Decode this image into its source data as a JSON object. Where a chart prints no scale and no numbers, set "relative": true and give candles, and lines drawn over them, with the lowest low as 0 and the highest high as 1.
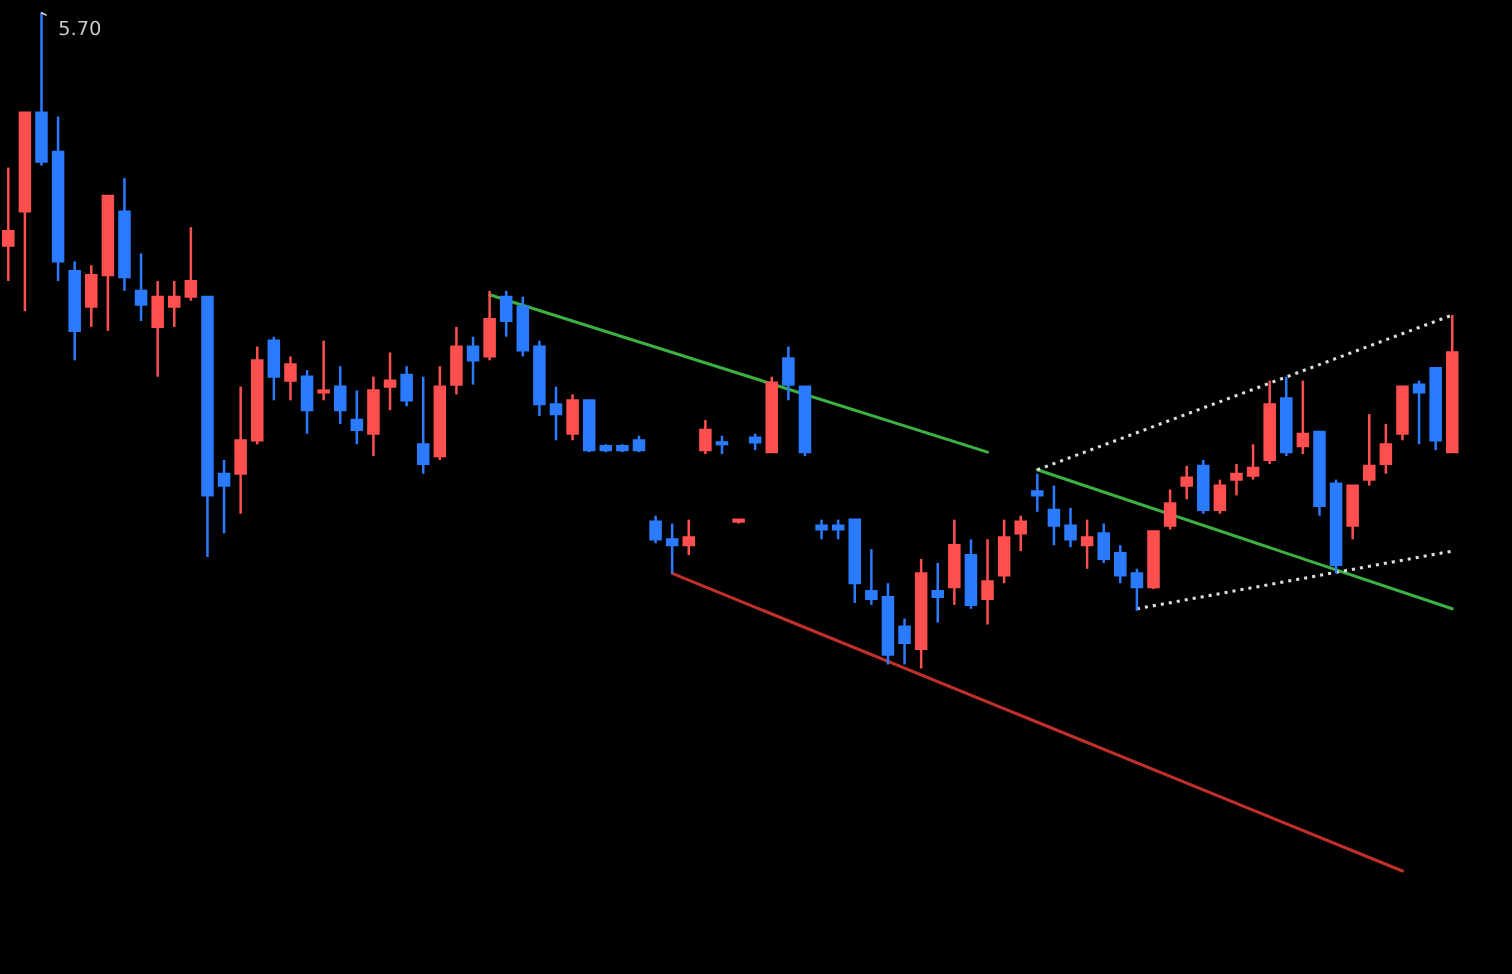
{
  "chart_data": {
    "type": "candlestick",
    "relative": true,
    "categories": [
      null,
      null,
      null,
      null,
      null,
      null,
      null,
      null,
      null,
      null,
      null,
      null,
      null,
      null,
      null,
      null,
      null,
      null,
      null,
      null,
      null,
      null,
      null,
      null,
      null,
      null,
      null,
      null,
      null,
      null,
      null,
      null,
      null,
      null,
      null,
      null,
      null,
      null,
      null,
      null,
      null,
      null,
      null,
      null,
      null,
      null,
      null,
      null,
      null,
      null,
      null,
      null,
      null,
      null,
      null,
      null,
      null,
      null,
      null,
      null,
      null,
      null,
      null,
      null,
      null,
      null,
      null,
      null,
      null,
      null,
      null,
      null,
      null,
      null,
      null,
      null,
      null,
      null,
      null,
      null,
      null,
      null,
      null,
      null,
      null,
      null,
      null,
      null
    ],
    "ohlc": [
      [
        0.645,
        0.764,
        0.591,
        0.667
      ],
      [
        0.697,
        0.848,
        0.545,
        0.848
      ],
      [
        0.848,
        1,
        0.767,
        0.773
      ],
      [
        0.788,
        0.842,
        0.591,
        0.621
      ],
      [
        0.606,
        0.621,
        0.47,
        0.515
      ],
      [
        0.552,
        0.615,
        0.521,
        0.6
      ],
      [
        0.6,
        0.721,
        0.515,
        0.721
      ],
      [
        0.697,
        0.748,
        0.576,
        0.597
      ],
      [
        0.576,
        0.633,
        0.53,
        0.555
      ],
      [
        0.521,
        0.591,
        0.445,
        0.567
      ],
      [
        0.552,
        0.591,
        0.521,
        0.567
      ],
      [
        0.567,
        0.673,
        0.561,
        0.591
      ],
      [
        0.567,
        0.567,
        0.17,
        0.264
      ],
      [
        0.297,
        0.318,
        0.206,
        0.279
      ],
      [
        0.297,
        0.43,
        0.236,
        0.348
      ],
      [
        0.348,
        0.491,
        0.342,
        0.47
      ],
      [
        0.5,
        0.506,
        0.409,
        0.445
      ],
      [
        0.439,
        0.476,
        0.409,
        0.464
      ],
      [
        0.445,
        0.455,
        0.358,
        0.394
      ],
      [
        0.421,
        0.5,
        0.409,
        0.424
      ],
      [
        0.43,
        0.461,
        0.373,
        0.394
      ],
      [
        0.379,
        0.424,
        0.342,
        0.364
      ],
      [
        0.358,
        0.445,
        0.324,
        0.424
      ],
      [
        0.43,
        0.482,
        0.394,
        0.439
      ],
      [
        0.448,
        0.461,
        0.4,
        0.409
      ],
      [
        0.342,
        0.445,
        0.297,
        0.312
      ],
      [
        0.324,
        0.461,
        0.318,
        0.43
      ],
      [
        0.433,
        0.521,
        0.418,
        0.491
      ],
      [
        0.491,
        0.506,
        0.433,
        0.47
      ],
      [
        0.476,
        0.576,
        0.47,
        0.533
      ],
      [
        0.567,
        0.576,
        0.506,
        0.53
      ],
      [
        0.552,
        0.567,
        0.476,
        0.485
      ],
      [
        0.491,
        0.5,
        0.385,
        0.403
      ],
      [
        0.403,
        0.43,
        0.348,
        0.388
      ],
      [
        0.358,
        0.418,
        0.348,
        0.409
      ],
      [
        0.409,
        0.409,
        0.33,
        0.333
      ],
      [
        0.339,
        0.342,
        0.33,
        0.333
      ],
      [
        0.339,
        0.342,
        0.33,
        0.333
      ],
      [
        0.348,
        0.355,
        0.33,
        0.333
      ],
      [
        0.224,
        0.233,
        0.191,
        0.197
      ],
      [
        0.197,
        0.221,
        0.145,
        0.188
      ],
      [
        0.188,
        0.227,
        0.173,
        0.2
      ],
      [
        0.333,
        0.379,
        0.327,
        0.364
      ],
      [
        0.345,
        0.355,
        0.327,
        0.342
      ],
      [
        0.224,
        0.227,
        0.221,
        0.227
      ],
      [
        0.352,
        0.358,
        0.333,
        0.345
      ],
      [
        0.33,
        0.445,
        0.33,
        0.436
      ],
      [
        0.473,
        0.491,
        0.409,
        0.433
      ],
      [
        0.43,
        0.43,
        0.324,
        0.33
      ],
      [
        0.218,
        0.227,
        0.197,
        0.212
      ],
      [
        0.218,
        0.227,
        0.197,
        0.212
      ],
      [
        0.227,
        0.227,
        0.1,
        0.13
      ],
      [
        0.118,
        0.182,
        0.097,
        0.106
      ],
      [
        0.109,
        0.13,
        0.006,
        0.021
      ],
      [
        0.064,
        0.076,
        0.006,
        0.039
      ],
      [
        0.03,
        0.167,
        0,
        0.145
      ],
      [
        0.118,
        0.161,
        0.07,
        0.109
      ],
      [
        0.124,
        0.227,
        0.097,
        0.188
      ],
      [
        0.173,
        0.197,
        0.091,
        0.097
      ],
      [
        0.106,
        0.197,
        0.067,
        0.133
      ],
      [
        0.142,
        0.227,
        0.13,
        0.2
      ],
      [
        0.206,
        0.233,
        0.179,
        0.224
      ],
      [
        0.27,
        0.297,
        0.239,
        0.264
      ],
      [
        0.242,
        0.279,
        0.188,
        0.218
      ],
      [
        0.218,
        0.245,
        0.185,
        0.197
      ],
      [
        0.188,
        0.227,
        0.152,
        0.2
      ],
      [
        0.206,
        0.221,
        0.161,
        0.167
      ],
      [
        0.176,
        0.188,
        0.13,
        0.142
      ],
      [
        0.145,
        0.152,
        0.088,
        0.124
      ],
      [
        0.124,
        0.209,
        0.121,
        0.209
      ],
      [
        0.218,
        0.273,
        0.212,
        0.252
      ],
      [
        0.279,
        0.309,
        0.258,
        0.291
      ],
      [
        0.309,
        0.318,
        0.236,
        0.242
      ],
      [
        0.242,
        0.288,
        0.236,
        0.279
      ],
      [
        0.288,
        0.312,
        0.264,
        0.297
      ],
      [
        0.294,
        0.342,
        0.288,
        0.306
      ],
      [
        0.318,
        0.439,
        0.312,
        0.403
      ],
      [
        0.412,
        0.445,
        0.324,
        0.33
      ],
      [
        0.339,
        0.439,
        0.327,
        0.358
      ],
      [
        0.361,
        0.361,
        0.233,
        0.248
      ],
      [
        0.282,
        0.288,
        0.145,
        0.158
      ],
      [
        0.218,
        0.279,
        0.197,
        0.279
      ],
      [
        0.288,
        0.388,
        0.279,
        0.309
      ],
      [
        0.312,
        0.373,
        0.297,
        0.342
      ],
      [
        0.358,
        0.43,
        0.348,
        0.43
      ],
      [
        0.433,
        0.439,
        0.342,
        0.421
      ],
      [
        0.458,
        0.458,
        0.333,
        0.348
      ],
      [
        0.33,
        0.539,
        0.33,
        0.482
      ]
    ],
    "colors": [
      "#ff4f4f",
      "#ff4f4f",
      "#2a7bff",
      "#2a7bff",
      "#2a7bff",
      "#ff4f4f",
      "#ff4f4f",
      "#2a7bff",
      "#2a7bff",
      "#ff4f4f",
      "#ff4f4f",
      "#ff4f4f",
      "#2a7bff",
      "#2a7bff",
      "#ff4f4f",
      "#ff4f4f",
      "#2a7bff",
      "#ff4f4f",
      "#2a7bff",
      "#ff4f4f",
      "#2a7bff",
      "#2a7bff",
      "#ff4f4f",
      "#ff4f4f",
      "#2a7bff",
      "#2a7bff",
      "#ff4f4f",
      "#ff4f4f",
      "#2a7bff",
      "#ff4f4f",
      "#2a7bff",
      "#2a7bff",
      "#2a7bff",
      "#2a7bff",
      "#ff4f4f",
      "#2a7bff",
      "#2a7bff",
      "#2a7bff",
      "#2a7bff",
      "#2a7bff",
      "#2a7bff",
      "#ff4f4f",
      "#ff4f4f",
      "#2a7bff",
      "#ff4f4f",
      "#2a7bff",
      "#ff4f4f",
      "#2a7bff",
      "#2a7bff",
      "#2a7bff",
      "#2a7bff",
      "#2a7bff",
      "#2a7bff",
      "#2a7bff",
      "#2a7bff",
      "#ff4f4f",
      "#2a7bff",
      "#ff4f4f",
      "#2a7bff",
      "#ff4f4f",
      "#ff4f4f",
      "#ff4f4f",
      "#2a7bff",
      "#2a7bff",
      "#2a7bff",
      "#ff4f4f",
      "#2a7bff",
      "#2a7bff",
      "#2a7bff",
      "#ff4f4f",
      "#ff4f4f",
      "#ff4f4f",
      "#2a7bff",
      "#ff4f4f",
      "#ff4f4f",
      "#ff4f4f",
      "#ff4f4f",
      "#2a7bff",
      "#ff4f4f",
      "#2a7bff",
      "#2a7bff",
      "#ff4f4f",
      "#ff4f4f",
      "#ff4f4f",
      "#ff4f4f",
      "#2a7bff",
      "#2a7bff",
      "#ff4f4f"
    ],
    "series": [
      {
        "type": "line",
        "color": "#3cb043",
        "line_style": "solid",
        "values": [
          null,
          null,
          null,
          null,
          null,
          null,
          null,
          null,
          null,
          null,
          null,
          null,
          null,
          null,
          null,
          null,
          null,
          null,
          null,
          null,
          null,
          null,
          null,
          null,
          null,
          null,
          null,
          null,
          null,
          0.57,
          null,
          null,
          null,
          null,
          null,
          null,
          null,
          null,
          null,
          null,
          null,
          null,
          null,
          null,
          null,
          null,
          null,
          null,
          null,
          null,
          null,
          null,
          null,
          null,
          null,
          null,
          null,
          null,
          null,
          0.33,
          null,
          null,
          null,
          null,
          null,
          null,
          null,
          null,
          null,
          null,
          null,
          null,
          null,
          null,
          null,
          null,
          null,
          null,
          null,
          null,
          null,
          null,
          null,
          null,
          null,
          null,
          null,
          null
        ]
      },
      {
        "type": "line",
        "color": "#3cb043",
        "line_style": "solid",
        "values": [
          null,
          null,
          null,
          null,
          null,
          null,
          null,
          null,
          null,
          null,
          null,
          null,
          null,
          null,
          null,
          null,
          null,
          null,
          null,
          null,
          null,
          null,
          null,
          null,
          null,
          null,
          null,
          null,
          null,
          null,
          null,
          null,
          null,
          null,
          null,
          null,
          null,
          null,
          null,
          null,
          null,
          null,
          null,
          null,
          null,
          null,
          null,
          null,
          null,
          null,
          null,
          null,
          null,
          null,
          null,
          null,
          null,
          null,
          null,
          null,
          null,
          null,
          0.303,
          null,
          null,
          null,
          null,
          null,
          null,
          null,
          null,
          null,
          null,
          null,
          null,
          null,
          null,
          null,
          null,
          null,
          null,
          null,
          null,
          null,
          null,
          null,
          null,
          0.091
        ]
      },
      {
        "type": "line",
        "color": "#c0302a",
        "line_style": "solid",
        "values": [
          null,
          null,
          null,
          null,
          null,
          null,
          null,
          null,
          null,
          null,
          null,
          null,
          null,
          null,
          null,
          null,
          null,
          null,
          null,
          null,
          null,
          null,
          null,
          null,
          null,
          null,
          null,
          null,
          null,
          null,
          null,
          null,
          null,
          null,
          null,
          null,
          null,
          null,
          null,
          null,
          0.145,
          null,
          null,
          null,
          null,
          null,
          null,
          null,
          null,
          null,
          null,
          null,
          null,
          null,
          null,
          null,
          null,
          null,
          null,
          null,
          null,
          null,
          null,
          null,
          null,
          null,
          null,
          null,
          null,
          null,
          null,
          null,
          null,
          null,
          null,
          null,
          null,
          null,
          null,
          null,
          null,
          null,
          null,
          null,
          -0.309,
          null,
          null,
          null
        ]
      },
      {
        "type": "line",
        "color": "#dddddd",
        "line_style": "dotted",
        "values": [
          null,
          null,
          null,
          null,
          null,
          null,
          null,
          null,
          null,
          null,
          null,
          null,
          null,
          null,
          null,
          null,
          null,
          null,
          null,
          null,
          null,
          null,
          null,
          null,
          null,
          null,
          null,
          null,
          null,
          null,
          null,
          null,
          null,
          null,
          null,
          null,
          null,
          null,
          null,
          null,
          null,
          null,
          null,
          null,
          null,
          null,
          null,
          null,
          null,
          null,
          null,
          null,
          null,
          null,
          null,
          null,
          null,
          null,
          null,
          null,
          null,
          null,
          0.303,
          null,
          null,
          null,
          null,
          null,
          null,
          null,
          null,
          null,
          null,
          null,
          null,
          null,
          null,
          null,
          null,
          null,
          null,
          null,
          null,
          null,
          null,
          null,
          null,
          0.539
        ]
      },
      {
        "type": "line",
        "color": "#dddddd",
        "line_style": "dotted",
        "values": [
          null,
          null,
          null,
          null,
          null,
          null,
          null,
          null,
          null,
          null,
          null,
          null,
          null,
          null,
          null,
          null,
          null,
          null,
          null,
          null,
          null,
          null,
          null,
          null,
          null,
          null,
          null,
          null,
          null,
          null,
          null,
          null,
          null,
          null,
          null,
          null,
          null,
          null,
          null,
          null,
          null,
          null,
          null,
          null,
          null,
          null,
          null,
          null,
          null,
          null,
          null,
          null,
          null,
          null,
          null,
          null,
          null,
          null,
          null,
          null,
          null,
          null,
          null,
          null,
          null,
          null,
          null,
          null,
          0.091,
          null,
          null,
          null,
          null,
          null,
          null,
          null,
          null,
          null,
          null,
          null,
          null,
          null,
          null,
          null,
          null,
          null,
          null,
          0.179
        ]
      }
    ],
    "annotations": [
      "5.70"
    ]
  }
}
